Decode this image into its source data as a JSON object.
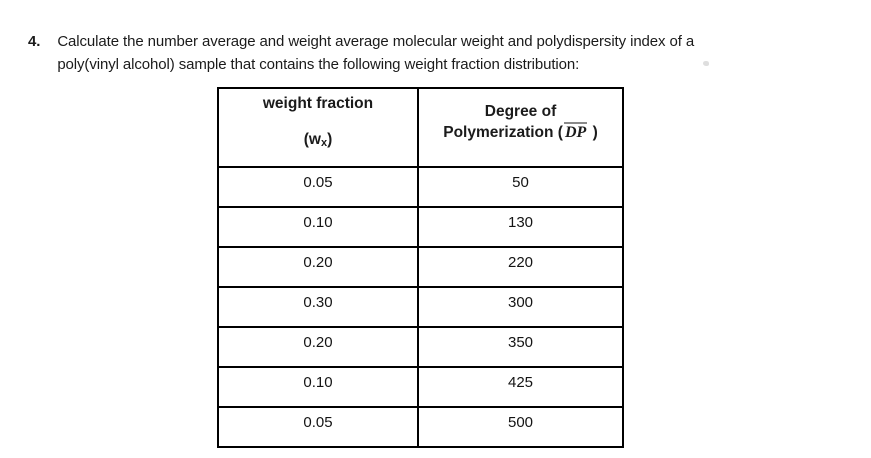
{
  "problem": {
    "number": "4.",
    "line1": "Calculate the number average and weight average molecular weight and polydispersity index of a",
    "line2": "poly(vinyl alcohol) sample that contains the following weight fraction distribution:"
  },
  "table": {
    "header": {
      "col1_title": "weight fraction",
      "col1_sym_open": "(w",
      "col1_sym_sub": "x",
      "col1_sym_close": ")",
      "col2_line1": "Degree of",
      "col2_line2_open": "Polymerization (",
      "col2_dp": "DP",
      "col2_line2_close": " )"
    },
    "rows": [
      {
        "wx": "0.05",
        "dp": "50"
      },
      {
        "wx": "0.10",
        "dp": "130"
      },
      {
        "wx": "0.20",
        "dp": "220"
      },
      {
        "wx": "0.30",
        "dp": "300"
      },
      {
        "wx": "0.20",
        "dp": "350"
      },
      {
        "wx": "0.10",
        "dp": "425"
      },
      {
        "wx": "0.05",
        "dp": "500"
      }
    ]
  },
  "chart_data": {
    "type": "table",
    "title": "weight fraction distribution of poly(vinyl alcohol)",
    "categories": [
      "weight fraction (wx)",
      "Degree of Polymerization (DP)"
    ],
    "series": [
      {
        "name": "weight fraction (wx)",
        "values": [
          0.05,
          0.1,
          0.2,
          0.3,
          0.2,
          0.1,
          0.05
        ]
      },
      {
        "name": "Degree of Polymerization (DP)",
        "values": [
          50,
          130,
          220,
          300,
          350,
          425,
          500
        ]
      }
    ]
  },
  "colors": {
    "text": "#1b1b1b",
    "table_border": "#000000",
    "overline": "#8a8a8a",
    "background": "#ffffff"
  }
}
